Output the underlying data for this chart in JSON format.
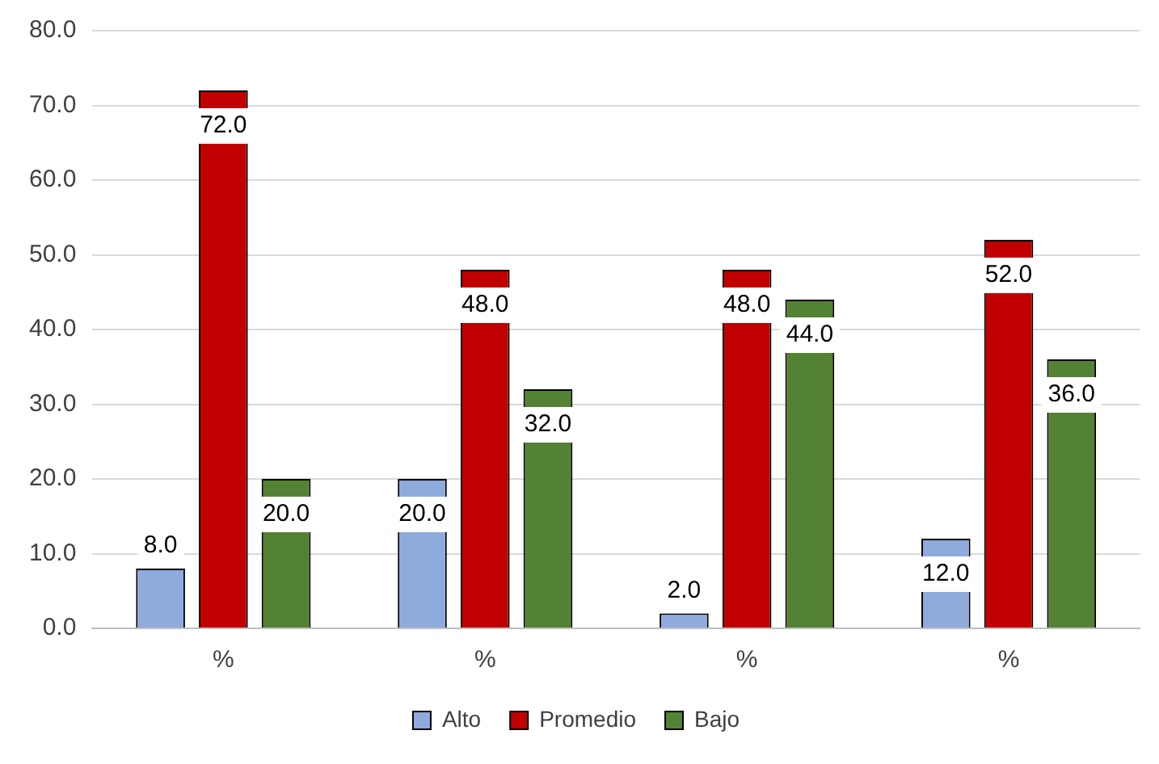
{
  "chart_data": {
    "type": "bar",
    "categories": [
      "%",
      "%",
      "%",
      "%"
    ],
    "series": [
      {
        "name": "Alto",
        "color": "#8faadc",
        "values": [
          8,
          20,
          2,
          12
        ],
        "value_labels": [
          "8.0",
          "20.0",
          "2.0",
          "12.0"
        ]
      },
      {
        "name": "Promedio",
        "color": "#c00000",
        "values": [
          72,
          48,
          48,
          52
        ],
        "value_labels": [
          "72.0",
          "48.0",
          "48.0",
          "52.0"
        ]
      },
      {
        "name": "Bajo",
        "color": "#548235",
        "values": [
          20,
          32,
          44,
          36
        ],
        "value_labels": [
          "20.0",
          "32.0",
          "44.0",
          "36.0"
        ]
      }
    ],
    "ylim": [
      0,
      80
    ],
    "yticks": [
      {
        "value": 0,
        "label": "0.0"
      },
      {
        "value": 10,
        "label": "10.0"
      },
      {
        "value": 20,
        "label": "20.0"
      },
      {
        "value": 30,
        "label": "30.0"
      },
      {
        "value": 40,
        "label": "40.0"
      },
      {
        "value": 50,
        "label": "50.0"
      },
      {
        "value": 60,
        "label": "60.0"
      },
      {
        "value": 70,
        "label": "70.0"
      },
      {
        "value": 80,
        "label": "80.0"
      }
    ],
    "grid": "y",
    "legend": "bottom"
  }
}
